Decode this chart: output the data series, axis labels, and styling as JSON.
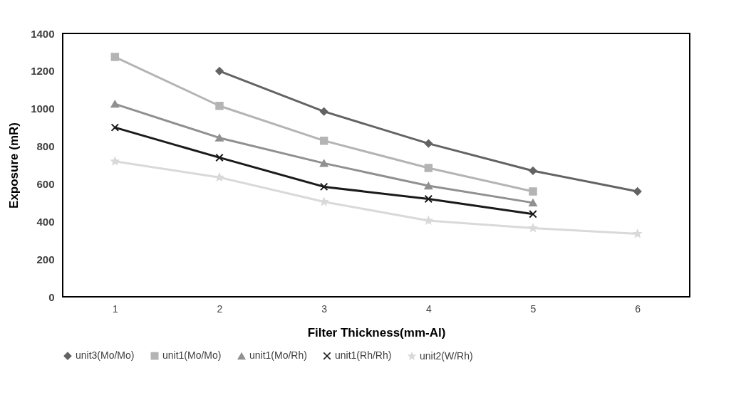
{
  "chart_data": {
    "type": "line",
    "xlabel": "Filter Thickness(mm-Al)",
    "ylabel": "Exposure (mR)",
    "categories": [
      "1",
      "2",
      "3",
      "4",
      "5",
      "6"
    ],
    "series": [
      {
        "name": "unit3(Mo/Mo)",
        "color": "#636363",
        "marker": "diamond",
        "values": [
          null,
          1200,
          985,
          815,
          670,
          560
        ]
      },
      {
        "name": "unit1(Mo/Mo)",
        "color": "#b4b4b4",
        "marker": "square",
        "values": [
          1275,
          1015,
          830,
          685,
          560,
          null
        ]
      },
      {
        "name": "unit1(Mo/Rh)",
        "color": "#909090",
        "marker": "triangle",
        "values": [
          1025,
          845,
          710,
          590,
          500,
          null
        ]
      },
      {
        "name": "unit1(Rh/Rh)",
        "color": "#1a1a1a",
        "marker": "cross",
        "values": [
          900,
          740,
          585,
          520,
          440,
          null
        ]
      },
      {
        "name": "unit2(W/Rh)",
        "color": "#d9d9d9",
        "marker": "star",
        "values": [
          720,
          635,
          505,
          405,
          365,
          335
        ]
      }
    ],
    "ylim": [
      0,
      1400
    ],
    "yticks": [
      0,
      200,
      400,
      600,
      800,
      {
        "value": 1000,
        "label": "1000"
      },
      {
        "value": 1200,
        "label": "1200"
      },
      {
        "value": 1400,
        "label": "1400"
      }
    ],
    "grid": false,
    "legend": "bottom"
  }
}
